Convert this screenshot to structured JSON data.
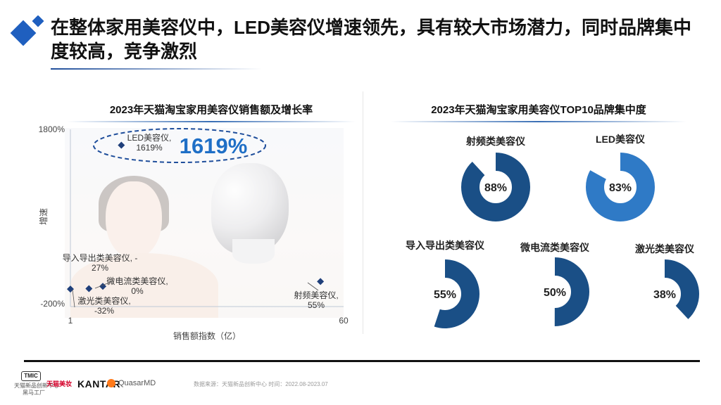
{
  "title": "在整体家用美容仪中，LED美容仪增速领先，具有较大市场潜力，同时品牌集中度较高，竞争激烈",
  "left_panel": {
    "title": "2023年天猫淘宝家用美容仪销售额及增长率"
  },
  "right_panel": {
    "title": "2023年天猫淘宝家用美容仪TOP10品牌集中度"
  },
  "highlight_value": "1619%",
  "colors": {
    "accent": "#1f4e9b",
    "donut_dark": "#1a4f86",
    "donut_light": "#2f7ac6",
    "point": "#1f3f7a"
  },
  "chart_data": [
    {
      "type": "scatter",
      "title": "2023年天猫淘宝家用美容仪销售额及增长率",
      "xlabel": "销售额指数（亿）",
      "ylabel": "增速",
      "xlim": [
        1,
        60
      ],
      "ylim": [
        -200,
        1800
      ],
      "x_ticks": [
        "1",
        "60"
      ],
      "y_ticks": [
        "1800%",
        "-200%"
      ],
      "points": [
        {
          "label_lines": [
            "LED美容仪,",
            "1619%"
          ],
          "x": 12,
          "y": 1619
        },
        {
          "label_lines": [
            "导入导出类美容仪, -",
            "27%"
          ],
          "x": 5,
          "y": -27
        },
        {
          "label_lines": [
            "微电流类美容仪,",
            "0%"
          ],
          "x": 8,
          "y": 0
        },
        {
          "label_lines": [
            "激光类美容仪,",
            "-32%"
          ],
          "x": 1,
          "y": -32
        },
        {
          "label_lines": [
            "射频美容仪,",
            "55%"
          ],
          "x": 55,
          "y": 55
        }
      ]
    },
    {
      "type": "donut",
      "title": "2023年天猫淘宝家用美容仪TOP10品牌集中度",
      "items": [
        {
          "label": "射频类美容仪",
          "value": 88,
          "value_label": "88%"
        },
        {
          "label": "LED美容仪",
          "value": 83,
          "value_label": "83%"
        },
        {
          "label": "导入导出类美容仪",
          "value": 55,
          "value_label": "55%"
        },
        {
          "label": "微电流类美容仪",
          "value": 50,
          "value_label": "50%"
        },
        {
          "label": "激光类美容仪",
          "value": 38,
          "value_label": "38%"
        }
      ]
    }
  ],
  "footer": {
    "tmic_badge": "TMIC",
    "tmic_text": "天猫新品创新中心",
    "tmic_sub": "黑马工厂",
    "tmall_beauty": "天猫美妆",
    "kantar": "KANTAR",
    "quasar": "QuasarMD",
    "source": "数据来源：天猫新品创新中心 时间：2022.08-2023.07"
  }
}
